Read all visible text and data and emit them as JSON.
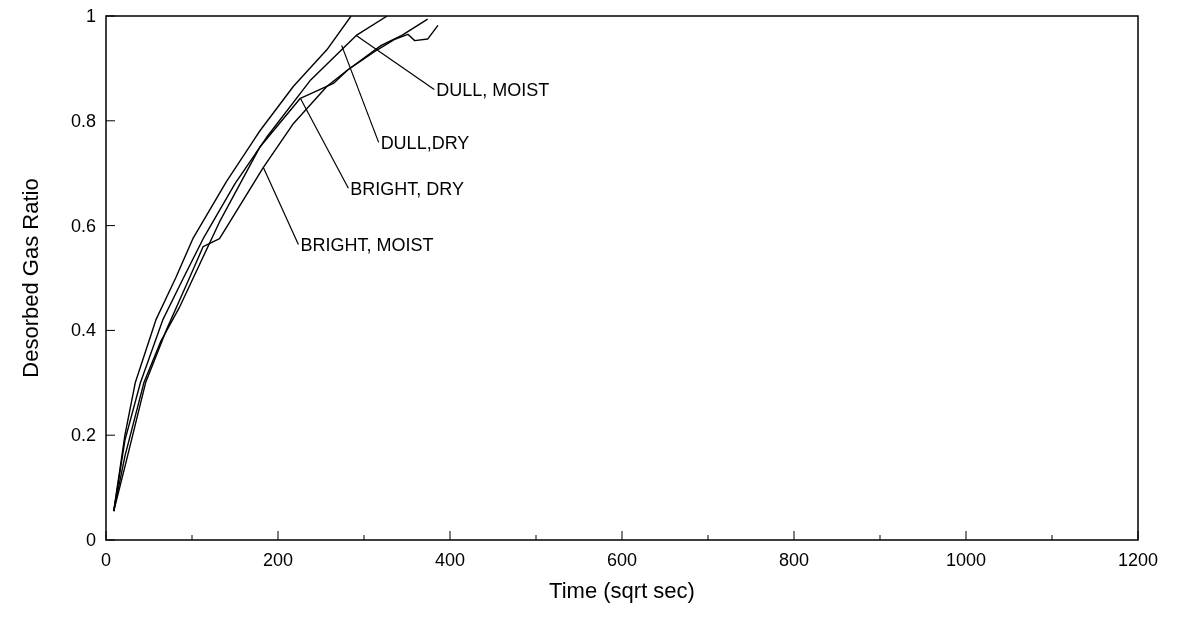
{
  "chart_data": {
    "type": "line",
    "xlabel": "Time (sqrt sec)",
    "ylabel": "Desorbed Gas Ratio",
    "xlim": [
      0,
      1200
    ],
    "ylim": [
      0,
      1
    ],
    "xticks": [
      0,
      {
        "value": 100,
        "label": null
      },
      200,
      {
        "value": 300,
        "label": null
      },
      400,
      {
        "value": 500,
        "label": null
      },
      600,
      {
        "value": 700,
        "label": null
      },
      800,
      {
        "value": 900,
        "label": null
      },
      1000,
      {
        "value": 1100,
        "label": null
      },
      1200
    ],
    "yticks": [
      0,
      0.2,
      0.4,
      0.6,
      0.8,
      1
    ],
    "grid": false,
    "marker": "none",
    "line_style": "solid",
    "series": [
      {
        "color": "#000000",
        "x": [
          9,
          22,
          34,
          58,
          81,
          101,
          140,
          179,
          218,
          257,
          285
        ],
        "values": [
          0.055,
          0.2,
          0.3,
          0.42,
          0.5,
          0.575,
          0.684,
          0.781,
          0.866,
          0.936,
          1.0
        ]
      },
      {
        "color": "#000000",
        "x": [
          9,
          22,
          40,
          66,
          90,
          113,
          150,
          187,
          238,
          291,
          327
        ],
        "values": [
          0.055,
          0.19,
          0.3,
          0.42,
          0.5,
          0.575,
          0.68,
          0.769,
          0.878,
          0.963,
          1.0
        ]
      },
      {
        "color": "#000000",
        "x": [
          9,
          22,
          44,
          64,
          86,
          132,
          179,
          226,
          265,
          281,
          316,
          335,
          351,
          359,
          374,
          386
        ],
        "values": [
          0.055,
          0.16,
          0.3,
          0.38,
          0.446,
          0.607,
          0.75,
          0.843,
          0.872,
          0.897,
          0.936,
          0.955,
          0.965,
          0.953,
          0.956,
          0.982
        ]
      },
      {
        "color": "#000000",
        "x": [
          9,
          22,
          46,
          70,
          97,
          113,
          132,
          183,
          218,
          257,
          281,
          320,
          344,
          374
        ],
        "values": [
          0.055,
          0.14,
          0.3,
          0.4,
          0.5,
          0.56,
          0.575,
          0.711,
          0.795,
          0.866,
          0.897,
          0.944,
          0.963,
          0.994
        ]
      }
    ],
    "annotations": [
      {
        "text": "DULL, MOIST",
        "x": 291,
        "y": 0.963
      },
      {
        "text": "DULL,DRY",
        "x": 274,
        "y": 0.944
      },
      {
        "text": "BRIGHT, DRY",
        "x": 226,
        "y": 0.843
      },
      {
        "text": "BRIGHT, MOIST",
        "x": 183,
        "y": 0.711
      }
    ]
  }
}
